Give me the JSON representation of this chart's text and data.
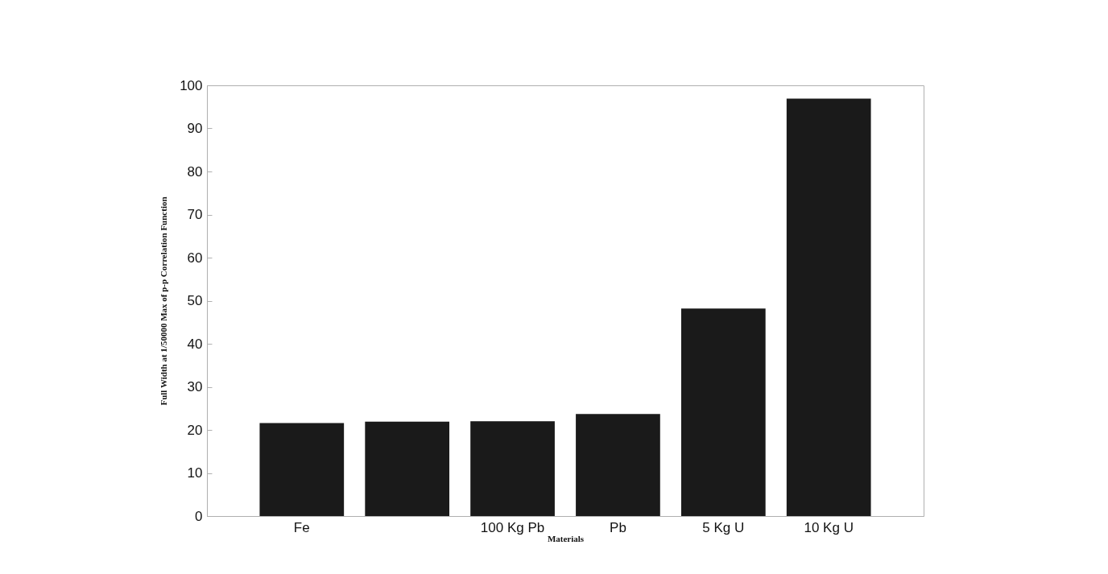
{
  "chart_data": {
    "type": "bar",
    "xlabel": "Materials",
    "ylabel": "Full Width at 1/50000 Max of p-p Correlation Function",
    "categories": [
      "Fe",
      null,
      "100 Kg  Pb",
      "Pb",
      "5 Kg  U",
      "10 Kg  U"
    ],
    "values": [
      21.6,
      21.9,
      22.0,
      23.7,
      48.2,
      96.9
    ],
    "color": "#1a1a1a",
    "ylim": [
      0,
      100
    ],
    "yticks": [
      0,
      10,
      20,
      30,
      40,
      50,
      60,
      70,
      80,
      90,
      100
    ],
    "grid": false
  }
}
